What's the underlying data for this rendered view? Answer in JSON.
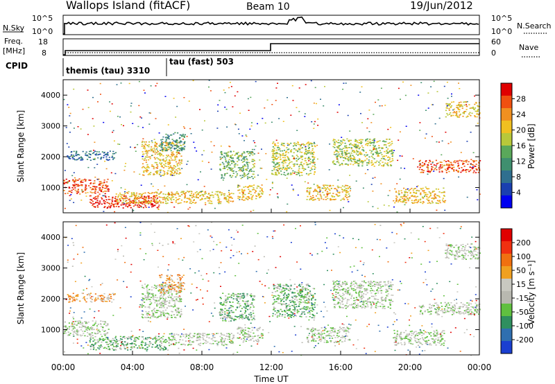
{
  "header": {
    "station": "Wallops Island (fitACF)",
    "beam": "Beam 10",
    "date": "19/Jun/2012"
  },
  "strips": {
    "nsky_label": "N.Sky",
    "nsky_ticks": [
      "10^5",
      "10^0"
    ],
    "nsearch_label": "N.Search",
    "nsearch_ticks": [
      "10^5",
      "10^0"
    ],
    "freq_label": "Freq.",
    "freq_unit": "[MHz]",
    "freq_ticks": [
      "18",
      "8"
    ],
    "nave_label": "Nave",
    "nave_ticks": [
      "60",
      "0"
    ],
    "cpid_label": "CPID",
    "cpid_segments": [
      {
        "label": "themis (tau) 3310",
        "start_hour": 0
      },
      {
        "label": "tau (fast) 503",
        "start_hour": 6
      }
    ]
  },
  "colors": {
    "power_scale": [
      "#0000f0",
      "#1a3fb0",
      "#2f6f8f",
      "#3f8f6f",
      "#5aa85a",
      "#b8c83a",
      "#f0c020",
      "#f09020",
      "#f05010",
      "#e00000"
    ],
    "velocity_scale": [
      "#1a3fd0",
      "#2f6fb0",
      "#2f8f5f",
      "#60c040",
      "#b8b8b0",
      "#c8c8c0",
      "#f0a020",
      "#f07010",
      "#f03010",
      "#e00000"
    ]
  },
  "chart_data": [
    {
      "type": "heatmap",
      "name": "power",
      "title": "",
      "xlabel": "",
      "ylabel": "Slant Range [km]",
      "colorbar_label": "Power [dB]",
      "colorbar_ticks": [
        "28",
        "24",
        "20",
        "16",
        "12",
        "8",
        "4"
      ],
      "xlim_hours": [
        0,
        24
      ],
      "ylim_km": [
        180,
        4500
      ],
      "y_ticks": [
        "4000",
        "3000",
        "2000",
        "1000"
      ],
      "x_ticks": [
        "00:00",
        "04:00",
        "08:00",
        "12:00",
        "16:00",
        "20:00",
        "00:00"
      ],
      "echo_regions": [
        {
          "t0": 0.0,
          "t1": 2.6,
          "r0": 800,
          "r1": 1300,
          "level": 8
        },
        {
          "t0": 1.5,
          "t1": 5.5,
          "r0": 350,
          "r1": 750,
          "level": 9
        },
        {
          "t0": 0.2,
          "t1": 3.0,
          "r0": 1900,
          "r1": 2200,
          "level": 2
        },
        {
          "t0": 4.5,
          "t1": 6.8,
          "r0": 1400,
          "r1": 2500,
          "level": 6
        },
        {
          "t0": 5.5,
          "t1": 7.0,
          "r0": 2200,
          "r1": 2800,
          "level": 3
        },
        {
          "t0": 3.0,
          "t1": 9.8,
          "r0": 500,
          "r1": 900,
          "level": 6
        },
        {
          "t0": 9.0,
          "t1": 11.0,
          "r0": 1300,
          "r1": 2200,
          "level": 4
        },
        {
          "t0": 10.0,
          "t1": 11.5,
          "r0": 600,
          "r1": 1100,
          "level": 6
        },
        {
          "t0": 12.0,
          "t1": 14.5,
          "r0": 1400,
          "r1": 2500,
          "level": 5
        },
        {
          "t0": 14.0,
          "t1": 16.5,
          "r0": 600,
          "r1": 1100,
          "level": 6
        },
        {
          "t0": 15.5,
          "t1": 19.0,
          "r0": 1700,
          "r1": 2600,
          "level": 5
        },
        {
          "t0": 19.0,
          "t1": 22.0,
          "r0": 500,
          "r1": 1000,
          "level": 6
        },
        {
          "t0": 20.5,
          "t1": 24.0,
          "r0": 1500,
          "r1": 1900,
          "level": 8
        },
        {
          "t0": 22.0,
          "t1": 24.0,
          "r0": 3300,
          "r1": 3800,
          "level": 6
        }
      ]
    },
    {
      "type": "heatmap",
      "name": "velocity",
      "title": "",
      "xlabel": "Time UT",
      "ylabel": "Slant Range [km]",
      "colorbar_label": "Velocity [m s⁻¹]",
      "colorbar_ticks": [
        "200",
        "100",
        "50",
        "15",
        "-15",
        "-50",
        "-100",
        "-200"
      ],
      "xlim_hours": [
        0,
        24
      ],
      "ylim_km": [
        180,
        4500
      ],
      "y_ticks": [
        "4000",
        "3000",
        "2000",
        "1000"
      ],
      "x_ticks": [
        "00:00",
        "04:00",
        "08:00",
        "12:00",
        "16:00",
        "20:00",
        "00:00"
      ],
      "echo_regions": [
        {
          "t0": 0.0,
          "t1": 2.6,
          "r0": 800,
          "r1": 1300,
          "level": 4
        },
        {
          "t0": 1.5,
          "t1": 6.0,
          "r0": 350,
          "r1": 800,
          "level": 3
        },
        {
          "t0": 0.2,
          "t1": 3.0,
          "r0": 1900,
          "r1": 2200,
          "level": 6
        },
        {
          "t0": 4.5,
          "t1": 6.8,
          "r0": 1400,
          "r1": 2500,
          "level": 4
        },
        {
          "t0": 5.5,
          "t1": 7.0,
          "r0": 2200,
          "r1": 2800,
          "level": 6
        },
        {
          "t0": 6.0,
          "t1": 9.8,
          "r0": 500,
          "r1": 900,
          "level": 4
        },
        {
          "t0": 9.0,
          "t1": 11.0,
          "r0": 1300,
          "r1": 2200,
          "level": 3
        },
        {
          "t0": 10.0,
          "t1": 11.5,
          "r0": 600,
          "r1": 1100,
          "level": 4
        },
        {
          "t0": 12.0,
          "t1": 14.5,
          "r0": 1400,
          "r1": 2500,
          "level": 3
        },
        {
          "t0": 14.0,
          "t1": 16.5,
          "r0": 600,
          "r1": 1100,
          "level": 4
        },
        {
          "t0": 15.5,
          "t1": 19.0,
          "r0": 1700,
          "r1": 2600,
          "level": 4
        },
        {
          "t0": 19.0,
          "t1": 22.0,
          "r0": 500,
          "r1": 1000,
          "level": 4
        },
        {
          "t0": 20.5,
          "t1": 24.0,
          "r0": 1500,
          "r1": 1900,
          "level": 4
        },
        {
          "t0": 22.0,
          "t1": 24.0,
          "r0": 3300,
          "r1": 3800,
          "level": 4
        }
      ]
    }
  ]
}
